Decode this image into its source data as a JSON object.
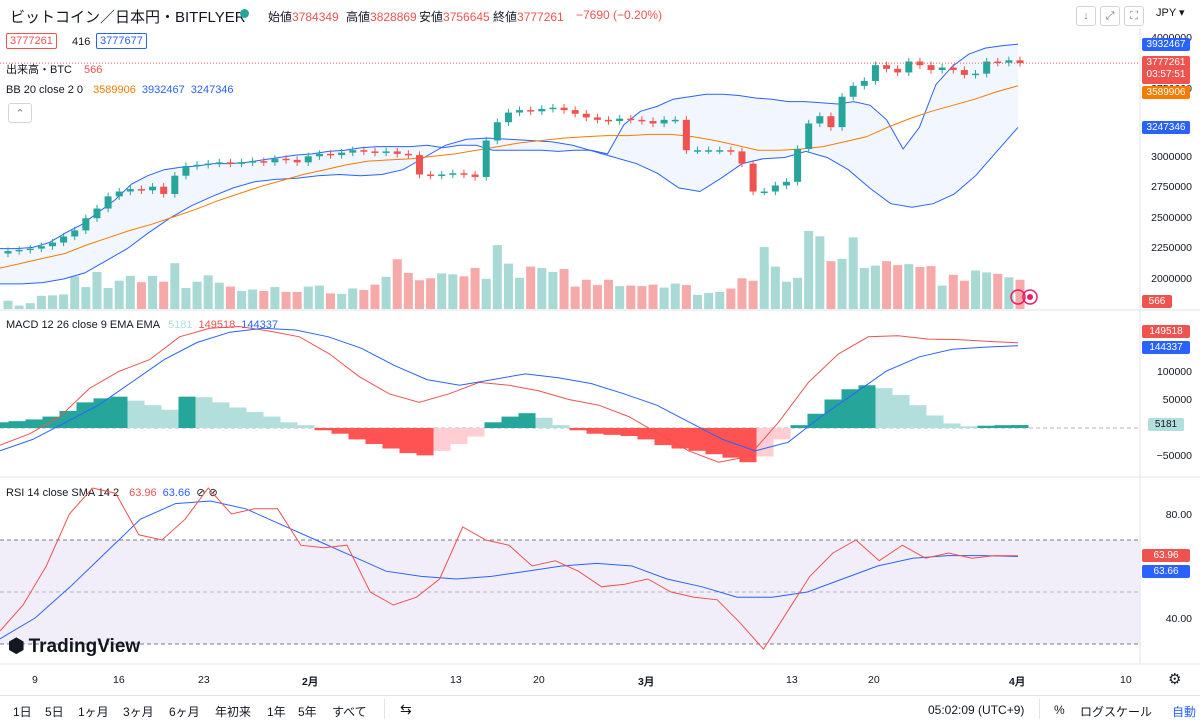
{
  "header": {
    "title": "ビットコイン／日本円・BITFLYER",
    "ohlc": [
      {
        "label": "始値",
        "value": "3784349"
      },
      {
        "label": "高値",
        "value": "3828869"
      },
      {
        "label": "安値",
        "value": "3756645"
      },
      {
        "label": "終値",
        "value": "3777261"
      }
    ],
    "change": "−7690 (−0.20%)",
    "bid": "3777261",
    "spread": "416",
    "ask": "3777677",
    "currency": "JPY",
    "icons": [
      "arrow-down-icon",
      "expand-icon",
      "fullscreen-icon"
    ]
  },
  "legends": {
    "volume_label": "出来高・BTC",
    "volume_value": "566",
    "bb_label": "BB 20 close 2 0",
    "bb_basis": "3589906",
    "bb_upper": "3932467",
    "bb_lower": "3247346",
    "collapse_icon": "chevron-up-icon",
    "macd_label": "MACD 12 26 close 9 EMA EMA",
    "macd_hist": "5181",
    "macd_line": "149518",
    "macd_signal": "144337",
    "rsi_label": "RSI 14 close SMA 14 2",
    "rsi_value": "63.96",
    "rsi_sma": "63.66",
    "hidden_icons": "⊘ ⊘"
  },
  "price_axis": {
    "ticks": [
      "4000000",
      "3750000",
      "3500000",
      "3250000",
      "3000000",
      "2750000",
      "2500000",
      "2250000",
      "2000000"
    ],
    "badges": {
      "upper": "3932467",
      "last": "3777261",
      "countdown": "03:57:51",
      "basis": "3589906",
      "lower": "3247346",
      "volume": "566"
    }
  },
  "macd_axis": {
    "ticks": [
      "100000",
      "50000",
      "−50000"
    ],
    "badges": {
      "macd": "149518",
      "signal": "144337",
      "hist": "5181"
    }
  },
  "rsi_axis": {
    "ticks": [
      "80.00",
      "40.00"
    ],
    "badges": {
      "rsi": "63.96",
      "sma": "63.66"
    }
  },
  "time_axis": {
    "labels": [
      "9",
      "16",
      "23",
      "2月",
      "13",
      "20",
      "3月",
      "13",
      "20",
      "4月",
      "10"
    ]
  },
  "watermark": "TradingView",
  "bottom_bar": {
    "ranges": [
      "1日",
      "5日",
      "1ヶ月",
      "3ヶ月",
      "6ヶ月",
      "年初来",
      "1年",
      "5年",
      "すべて"
    ],
    "clock": "05:02:09 (UTC+9)",
    "percent": "%",
    "log": "ログスケール",
    "auto": "自動"
  },
  "colors": {
    "up": "#26a69a",
    "down": "#ef5350",
    "bb_band": "#2962ff",
    "bb_basis": "#f57c00",
    "rsi_line": "#ef5350",
    "rsi_sma": "#2962ff",
    "rsi_fill": "#ede7f6"
  },
  "chart_data": {
    "type": "candlestick",
    "title": "ビットコイン／日本円・BITFLYER",
    "close": [
      2230000,
      2240000,
      2250000,
      2270000,
      2300000,
      2350000,
      2400000,
      2500000,
      2580000,
      2680000,
      2720000,
      2740000,
      2730000,
      2760000,
      2700000,
      2850000,
      2930000,
      2940000,
      2950000,
      2960000,
      2950000,
      2960000,
      2970000,
      2960000,
      2990000,
      2980000,
      2960000,
      3010000,
      3030000,
      3020000,
      3040000,
      3060000,
      3050000,
      3040000,
      3050000,
      3030000,
      3020000,
      2860000,
      2850000,
      2860000,
      2870000,
      2860000,
      2840000,
      3140000,
      3290000,
      3370000,
      3390000,
      3380000,
      3400000,
      3410000,
      3390000,
      3360000,
      3330000,
      3310000,
      3300000,
      3320000,
      3310000,
      3300000,
      3280000,
      3310000,
      3310000,
      3060000,
      3060000,
      3060000,
      3060000,
      3050000,
      2950000,
      2720000,
      2720000,
      2770000,
      2800000,
      3070000,
      3280000,
      3340000,
      3250000,
      3500000,
      3590000,
      3630000,
      3760000,
      3730000,
      3700000,
      3790000,
      3760000,
      3720000,
      3740000,
      3720000,
      3680000,
      3690000,
      3790000,
      3780000,
      3800000,
      3777261
    ],
    "volume_relative": [
      0.17,
      0.07,
      0.12,
      0.27,
      0.28,
      0.3,
      0.67,
      0.45,
      0.76,
      0.43,
      0.58,
      0.68,
      0.55,
      0.68,
      0.56,
      0.94,
      0.43,
      0.56,
      0.69,
      0.54,
      0.46,
      0.37,
      0.4,
      0.37,
      0.45,
      0.35,
      0.35,
      0.46,
      0.48,
      0.32,
      0.31,
      0.42,
      0.39,
      0.5,
      0.66,
      1.02,
      0.74,
      0.59,
      0.63,
      0.73,
      0.71,
      0.67,
      0.84,
      0.62,
      1.31,
      0.93,
      0.64,
      0.87,
      0.84,
      0.76,
      0.82,
      0.46,
      0.6,
      0.49,
      0.6,
      0.47,
      0.48,
      0.47,
      0.5,
      0.44,
      0.52,
      0.49,
      0.29,
      0.33,
      0.35,
      0.42,
      0.63,
      0.58,
      1.27,
      0.87,
      0.56,
      0.64,
      1.6,
      1.49,
      0.98,
      1.03,
      1.47,
      0.84,
      0.89,
      0.98,
      0.9,
      0.92,
      0.86,
      0.88,
      0.48,
      0.7,
      0.58,
      0.79,
      0.75,
      0.72,
      0.65,
      0.6
    ],
    "bb_upper": [
      2250000,
      2250000,
      2260000,
      2300000,
      2380000,
      2450000,
      2550000,
      2650000,
      2780000,
      2850000,
      2900000,
      2920000,
      2930000,
      2950000,
      2950000,
      2960000,
      2980000,
      3000000,
      3020000,
      3030000,
      3050000,
      3060000,
      3080000,
      3090000,
      3090000,
      3090000,
      3100000,
      3080000,
      3100000,
      3100000,
      3060000,
      3060000,
      3060000,
      3060000,
      3050000,
      3060000,
      3060000,
      3030000,
      3270000,
      3380000,
      3420000,
      3480000,
      3500000,
      3520000,
      3520000,
      3510000,
      3490000,
      3480000,
      3460000,
      3460000,
      3450000,
      3440000,
      3460000,
      3430000,
      3310000,
      3070000,
      3250000,
      3600000,
      3750000,
      3850000,
      3900000,
      3920000,
      3932467
    ],
    "bb_basis": [
      2090000,
      2130000,
      2170000,
      2210000,
      2280000,
      2340000,
      2400000,
      2450000,
      2510000,
      2570000,
      2640000,
      2700000,
      2760000,
      2810000,
      2860000,
      2900000,
      2940000,
      2970000,
      2980000,
      2990000,
      3010000,
      3030000,
      3060000,
      3090000,
      3120000,
      3140000,
      3160000,
      3170000,
      3180000,
      3180000,
      3190000,
      3190000,
      3170000,
      3140000,
      3100000,
      3060000,
      3060000,
      3070000,
      3090000,
      3130000,
      3170000,
      3250000,
      3320000,
      3380000,
      3430000,
      3480000,
      3540000,
      3589906
    ],
    "bb_lower": [
      1960000,
      1960000,
      1970000,
      2000000,
      2050000,
      2150000,
      2250000,
      2380000,
      2500000,
      2600000,
      2680000,
      2750000,
      2800000,
      2820000,
      2830000,
      2850000,
      2860000,
      2850000,
      2860000,
      2900000,
      3000000,
      3100000,
      3150000,
      3160000,
      3150000,
      3140000,
      3130000,
      3100000,
      3050000,
      3000000,
      2950000,
      2870000,
      2750000,
      2720000,
      2830000,
      2950000,
      2990000,
      3000000,
      3050000,
      3000000,
      2900000,
      2750000,
      2620000,
      2590000,
      2620000,
      2700000,
      2850000,
      3050000,
      3247346
    ],
    "macd_hist": [
      10000,
      12000,
      15000,
      20000,
      30000,
      45000,
      52000,
      55000,
      48000,
      40000,
      32000,
      55000,
      54000,
      45000,
      36000,
      28000,
      20000,
      10000,
      5000,
      -4000,
      -10000,
      -20000,
      -28000,
      -36000,
      -44000,
      -48000,
      -40000,
      -28000,
      -15000,
      10000,
      20000,
      26000,
      18000,
      5000,
      -4000,
      -10000,
      -12000,
      -14000,
      -20000,
      -30000,
      -36000,
      -40000,
      -46000,
      -52000,
      -60000,
      -50000,
      -20000,
      5000,
      25000,
      50000,
      68000,
      75000,
      70000,
      58000,
      40000,
      22000,
      8000,
      3000,
      4000,
      5000,
      5181
    ],
    "macd_line": [
      -30000,
      -10000,
      20000,
      70000,
      100000,
      120000,
      160000,
      175000,
      178000,
      170000,
      160000,
      130000,
      90000,
      60000,
      45000,
      60000,
      80000,
      75000,
      65000,
      50000,
      40000,
      20000,
      -10000,
      -40000,
      -60000,
      -50000,
      10000,
      80000,
      130000,
      160000,
      162000,
      156000,
      155000,
      152000,
      149518
    ],
    "macd_signal": [
      -40000,
      -20000,
      10000,
      40000,
      80000,
      120000,
      150000,
      168000,
      175000,
      172000,
      160000,
      140000,
      110000,
      85000,
      75000,
      85000,
      95000,
      88000,
      78000,
      60000,
      40000,
      10000,
      -20000,
      -40000,
      -25000,
      20000,
      60000,
      100000,
      125000,
      138000,
      142000,
      144337
    ],
    "rsi": [
      35,
      45,
      60,
      80,
      90,
      88,
      72,
      70,
      78,
      90,
      80,
      82,
      82,
      68,
      67,
      68,
      50,
      45,
      48,
      55,
      75,
      70,
      68,
      60,
      62,
      58,
      52,
      53,
      55,
      50,
      48,
      47,
      38,
      28,
      42,
      56,
      65,
      70,
      62,
      68,
      63,
      65,
      63,
      64,
      63.96
    ],
    "rsi_sma": [
      32,
      40,
      52,
      65,
      78,
      84,
      85,
      82,
      76,
      70,
      64,
      58,
      56,
      55,
      56,
      58,
      60,
      61,
      60,
      55,
      52,
      48,
      48,
      50,
      55,
      60,
      63,
      64,
      64,
      63.66
    ],
    "ylim": [
      2000000,
      4100000
    ],
    "rsi_levels": [
      70,
      30
    ]
  }
}
